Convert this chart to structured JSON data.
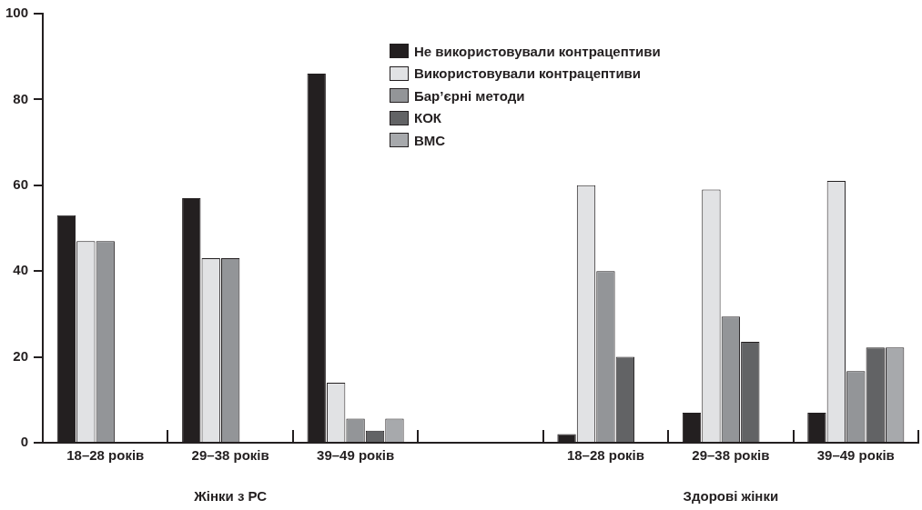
{
  "chart_data": {
    "type": "bar",
    "categories": [
      "18–28 років",
      "29–38 років",
      "39–49 років",
      null,
      "18–28 років",
      "29–38 років",
      "39–49 років"
    ],
    "series": [
      {
        "name": "Не використовували контрацептиви",
        "color": "#231f20",
        "values": [
          53,
          57,
          86,
          null,
          2,
          7,
          7
        ]
      },
      {
        "name": "Використовували контрацептиви",
        "color": "#e1e2e4",
        "values": [
          47,
          43,
          14,
          null,
          60,
          59,
          61
        ]
      },
      {
        "name": "Бар’єрні методи",
        "color": "#939598",
        "values": [
          47,
          43,
          5.6,
          null,
          40,
          29.4,
          16.7
        ]
      },
      {
        "name": "КОК",
        "color": "#626365",
        "values": [
          null,
          null,
          2.8,
          null,
          20,
          23.5,
          22.2
        ]
      },
      {
        "name": "ВМС",
        "color": "#a7a9ac",
        "values": [
          null,
          null,
          5.6,
          null,
          null,
          null,
          22.2
        ]
      }
    ],
    "annotations": [
      "Жінки з РС",
      "Здорові жінки"
    ],
    "ylim": [
      0,
      100
    ],
    "yticks": [
      0,
      20,
      40,
      60,
      80,
      100
    ],
    "grid": false,
    "legend": "top"
  }
}
